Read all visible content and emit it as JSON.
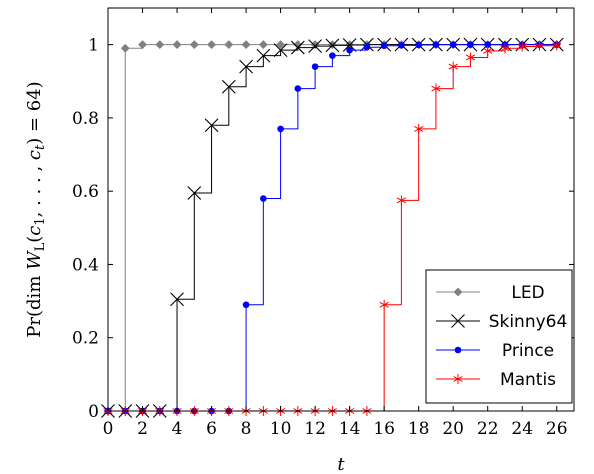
{
  "chart_data": {
    "type": "line",
    "step": true,
    "xlabel": "t",
    "ylabel": "Pr(dim W_L(c_1, …, c_t) = 64)",
    "xlim": [
      0,
      27
    ],
    "ylim": [
      0,
      1.1
    ],
    "x_ticks": [
      0,
      2,
      4,
      6,
      8,
      10,
      12,
      14,
      16,
      18,
      20,
      22,
      24,
      26
    ],
    "y_ticks": [
      0,
      0.2,
      0.4,
      0.6,
      0.8,
      1
    ],
    "grid": false,
    "legend_position": "bottom-right",
    "x": [
      0,
      1,
      2,
      3,
      4,
      5,
      6,
      7,
      8,
      9,
      10,
      11,
      12,
      13,
      14,
      15,
      16,
      17,
      18,
      19,
      20,
      21,
      22,
      23,
      24,
      25,
      26
    ],
    "series": [
      {
        "name": "LED",
        "color": "#808080",
        "marker": "diamond",
        "values": [
          0,
          0.99,
          1,
          1,
          1,
          1,
          1,
          1,
          1,
          1,
          1,
          1,
          1,
          1,
          1,
          1,
          1,
          1,
          1,
          1,
          1,
          1,
          1,
          1,
          1,
          1,
          1
        ]
      },
      {
        "name": "Skinny64",
        "color": "#000000",
        "marker": "x",
        "values": [
          0,
          0,
          0,
          0,
          0.305,
          0.595,
          0.78,
          0.885,
          0.94,
          0.97,
          0.985,
          0.992,
          0.996,
          0.998,
          0.999,
          1,
          1,
          1,
          1,
          1,
          1,
          1,
          1,
          1,
          1,
          1,
          1
        ]
      },
      {
        "name": "Prince",
        "color": "#0000ff",
        "marker": "circle",
        "values": [
          0,
          0,
          0,
          0,
          0,
          0,
          0,
          0,
          0.29,
          0.58,
          0.77,
          0.88,
          0.94,
          0.97,
          0.985,
          0.993,
          0.997,
          0.998,
          0.999,
          1,
          1,
          1,
          1,
          1,
          1,
          1,
          1
        ]
      },
      {
        "name": "Mantis",
        "color": "#ff0000",
        "marker": "star",
        "values": [
          0,
          0,
          0,
          0,
          0,
          0,
          0,
          0,
          0,
          0,
          0,
          0,
          0,
          0,
          0,
          0,
          0.29,
          0.575,
          0.77,
          0.88,
          0.94,
          0.965,
          0.983,
          0.99,
          0.995,
          0.997,
          0.998
        ]
      }
    ]
  }
}
